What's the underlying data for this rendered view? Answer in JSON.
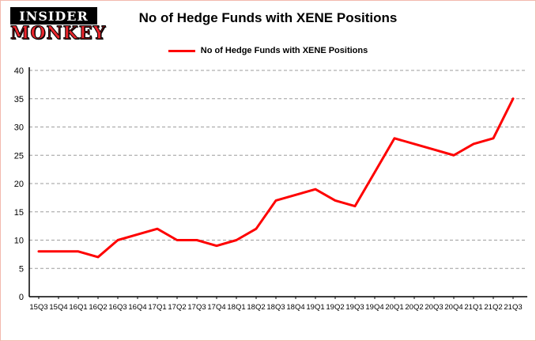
{
  "logo": {
    "line1": "INSIDER",
    "line2": "MONKEY"
  },
  "header": {
    "title": "No of Hedge Funds with XENE Positions"
  },
  "legend": {
    "label": "No of Hedge Funds with XENE Positions",
    "color": "#fe0000"
  },
  "chart_data": {
    "type": "line",
    "title": "No of Hedge Funds with XENE Positions",
    "categories": [
      "15Q3",
      "15Q4",
      "16Q1",
      "16Q2",
      "16Q3",
      "16Q4",
      "17Q1",
      "17Q2",
      "17Q3",
      "17Q4",
      "18Q1",
      "18Q2",
      "18Q3",
      "18Q4",
      "19Q1",
      "19Q2",
      "19Q3",
      "19Q4",
      "20Q1",
      "20Q2",
      "20Q3",
      "20Q4",
      "21Q1",
      "21Q2",
      "21Q3"
    ],
    "series": [
      {
        "name": "No of Hedge Funds with XENE Positions",
        "color": "#fe0000",
        "values": [
          8,
          8,
          8,
          7,
          10,
          11,
          12,
          10,
          10,
          9,
          10,
          12,
          17,
          18,
          19,
          17,
          16,
          22,
          28,
          27,
          26,
          25,
          27,
          28,
          35
        ]
      }
    ],
    "xlabel": "",
    "ylabel": "",
    "ylim": [
      0,
      40
    ],
    "ytick_step": 5,
    "grid": "horizontal-dashed",
    "legend_position": "top-center",
    "axis_color": "#000000",
    "grid_color": "#9e9e9e"
  }
}
